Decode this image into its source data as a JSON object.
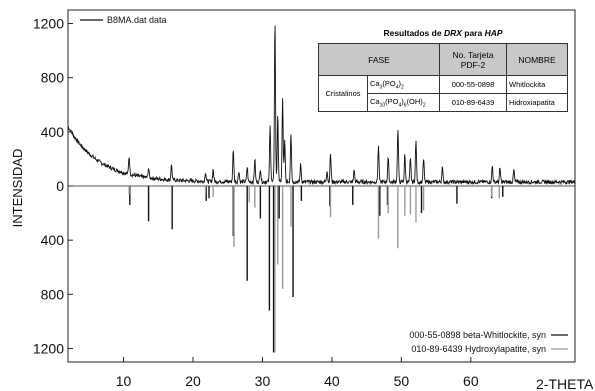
{
  "chart_data": {
    "type": "line",
    "title": "",
    "xlabel": "2-THETA",
    "ylabel": "INTENSIDAD",
    "xlim": [
      2,
      75
    ],
    "ylim": [
      -1300,
      1300
    ],
    "x_ticks": [
      10,
      20,
      30,
      40,
      50,
      60
    ],
    "y_ticks": [
      {
        "v": 1200,
        "label": "1200"
      },
      {
        "v": 800,
        "label": "800"
      },
      {
        "v": 400,
        "label": "400"
      },
      {
        "v": 0,
        "label": "0"
      },
      {
        "v": -400,
        "label": "400"
      },
      {
        "v": -800,
        "label": "800"
      },
      {
        "v": -1200,
        "label": "1200"
      }
    ],
    "grid": false,
    "series": [
      {
        "name": "B8MA.dat data",
        "color": "#111111",
        "background": {
          "start": 440,
          "decay_width": 4.5,
          "floor": 30
        },
        "peaks": [
          [
            10.8,
            130
          ],
          [
            13.6,
            70
          ],
          [
            16.9,
            110
          ],
          [
            21.8,
            70
          ],
          [
            22.9,
            90
          ],
          [
            25.8,
            230
          ],
          [
            26.6,
            80
          ],
          [
            27.8,
            110
          ],
          [
            28.9,
            170
          ],
          [
            29.7,
            100
          ],
          [
            31.1,
            430
          ],
          [
            31.8,
            1200
          ],
          [
            32.2,
            490
          ],
          [
            32.9,
            610
          ],
          [
            33.2,
            300
          ],
          [
            34.1,
            360
          ],
          [
            35.5,
            130
          ],
          [
            39.3,
            90
          ],
          [
            39.8,
            210
          ],
          [
            43.2,
            90
          ],
          [
            46.7,
            260
          ],
          [
            48.1,
            180
          ],
          [
            49.5,
            390
          ],
          [
            50.5,
            200
          ],
          [
            51.3,
            170
          ],
          [
            52.1,
            300
          ],
          [
            53.2,
            170
          ],
          [
            55.9,
            110
          ],
          [
            63.1,
            120
          ],
          [
            64.2,
            100
          ],
          [
            66.2,
            90
          ]
        ]
      },
      {
        "name": "000-55-0898 beta-Whitlockite, syn",
        "color": "#111111",
        "peaks": [
          [
            10.9,
            -140
          ],
          [
            13.6,
            -260
          ],
          [
            17.0,
            -320
          ],
          [
            21.9,
            -110
          ],
          [
            22.3,
            -90
          ],
          [
            25.8,
            -370
          ],
          [
            27.8,
            -700
          ],
          [
            29.7,
            -240
          ],
          [
            31.0,
            -920
          ],
          [
            31.6,
            -1230
          ],
          [
            32.4,
            -240
          ],
          [
            34.4,
            -820
          ],
          [
            35.6,
            -110
          ],
          [
            39.7,
            -150
          ],
          [
            43.0,
            -140
          ],
          [
            46.9,
            -220
          ],
          [
            48.0,
            -140
          ],
          [
            52.9,
            -200
          ],
          [
            58.0,
            -130
          ],
          [
            63.0,
            -90
          ],
          [
            64.6,
            -80
          ]
        ]
      },
      {
        "name": "010-89-6439 Hydroxylapatite, syn",
        "color": "#9a9a9a",
        "peaks": [
          [
            10.8,
            -60
          ],
          [
            21.8,
            -60
          ],
          [
            22.9,
            -80
          ],
          [
            25.9,
            -450
          ],
          [
            28.1,
            -120
          ],
          [
            28.9,
            -160
          ],
          [
            31.8,
            -1230
          ],
          [
            32.2,
            -580
          ],
          [
            32.9,
            -760
          ],
          [
            34.1,
            -300
          ],
          [
            39.8,
            -230
          ],
          [
            46.7,
            -390
          ],
          [
            48.1,
            -200
          ],
          [
            49.5,
            -460
          ],
          [
            50.5,
            -220
          ],
          [
            51.3,
            -210
          ],
          [
            52.1,
            -270
          ],
          [
            53.2,
            -180
          ],
          [
            63.0,
            -80
          ],
          [
            64.1,
            -90
          ]
        ]
      }
    ],
    "legend_top": "B8MA.dat data",
    "legend_bottom": [
      {
        "label": "000-55-0898 beta-Whitlockite, syn",
        "color": "#111111"
      },
      {
        "label": "010-89-6439 Hydroxylapatite, syn",
        "color": "#9a9a9a"
      }
    ]
  },
  "table": {
    "title_prefix": "Resultados de ",
    "title_em1": "DRX",
    "title_mid": " para ",
    "title_em2": "HAP",
    "headers": [
      "FASE",
      "No. Tarjeta PDF-2",
      "NOMBRE"
    ],
    "group_label": "Cristalinos",
    "rows": [
      {
        "formula": "Ca3(PO4)2",
        "card": "000-55-0898",
        "name": "Whitlockita"
      },
      {
        "formula": "Ca10(PO4)6(OH)2",
        "card": "010-89-6439",
        "name": "Hidroxiapatita"
      }
    ]
  }
}
